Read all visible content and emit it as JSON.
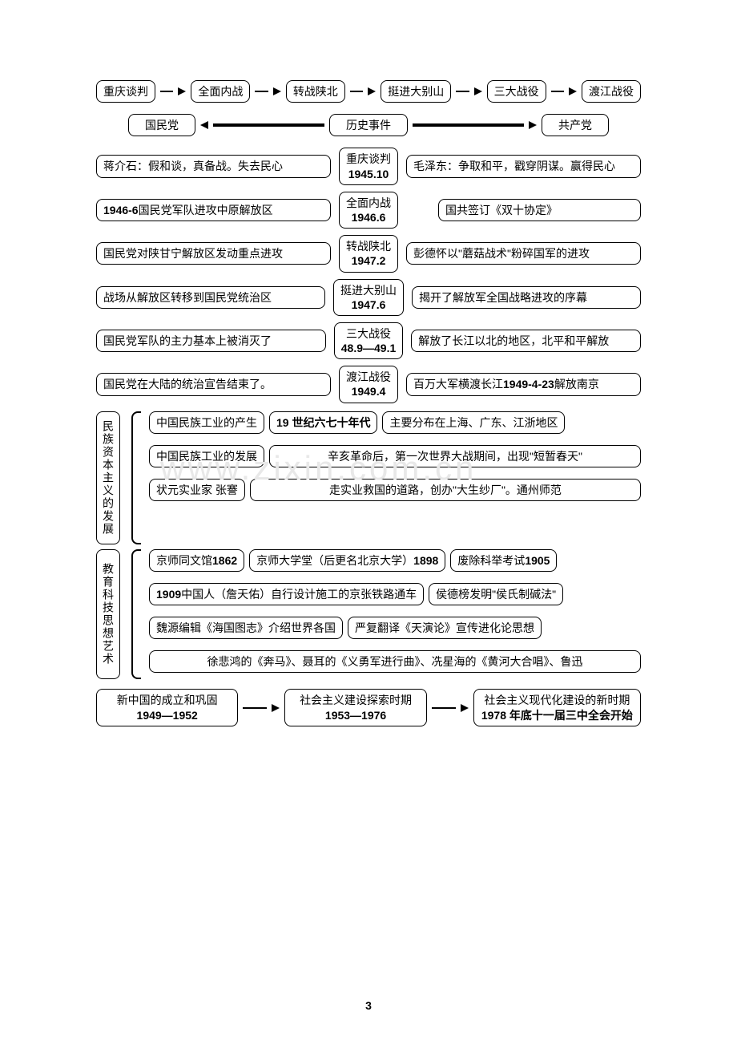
{
  "watermark": "www.zixin.com.cn",
  "page_number": "3",
  "timeline_top": [
    "重庆谈判",
    "全面内战",
    "转战陕北",
    "挺进大别山",
    "三大战役",
    "渡江战役"
  ],
  "header_row": {
    "left": "国民党",
    "center": "历史事件",
    "right": "共产党"
  },
  "events": [
    {
      "left": "蒋介石：假和谈，真备战。失去民心",
      "center": "重庆谈判",
      "date": "1945.10",
      "right": "毛泽东：争取和平，戳穿阴谋。赢得民心"
    },
    {
      "left": "1946-6 国民党军队进攻中原解放区",
      "center": "全面内战",
      "date": "1946.6",
      "right": "国共签订《双十协定》",
      "right_offset": true
    },
    {
      "left": "国民党对陕甘宁解放区发动重点进攻",
      "center": "转战陕北",
      "date": "1947.2",
      "right": "彭德怀以\"蘑菇战术\"粉碎国军的进攻"
    },
    {
      "left": "战场从解放区转移到国民党统治区",
      "center": "挺进大别山",
      "date": "1947.6",
      "right": "揭开了解放军全国战略进攻的序幕"
    },
    {
      "left": "国民党军队的主力基本上被消灭了",
      "center": "三大战役",
      "date": "48.9—49.1",
      "right": "解放了长江以北的地区，北平和平解放"
    },
    {
      "left": "国民党在大陆的统治宣告结束了。",
      "center": "渡江战役",
      "date": "1949.4",
      "right": "百万大军横渡长江 1949-4-23 解放南京"
    }
  ],
  "section1_title": "民族资本主义的发展",
  "section1": [
    {
      "a": "中国民族工业的产生",
      "b": "19 世纪六七十年代",
      "c": "主要分布在上海、广东、江浙地区"
    },
    {
      "a": "中国民族工业的发展",
      "b": "辛亥革命后，第一次世界大战期间，出现\"短暂春天\""
    },
    {
      "a": "状元实业家  张謇",
      "b": "走实业救国的道路，创办\"大生纱厂\"。通州师范"
    }
  ],
  "section2_title": "教育科技思想艺术",
  "section2": [
    [
      "京师同文馆 1862",
      "京师大学堂（后更名北京大学）1898",
      "废除科举考试 1905"
    ],
    [
      "1909 中国人（詹天佑）自行设计施工的京张铁路通车",
      "侯德榜发明\"侯氏制碱法\""
    ],
    [
      "魏源编辑《海国图志》介绍世界各国",
      "严复翻译《天演论》宣传进化论思想"
    ],
    [
      "徐悲鸿的《奔马》、聂耳的《义勇军进行曲》、冼星海的《黄河大合唱》、鲁迅"
    ]
  ],
  "periods": [
    {
      "title": "新中国的成立和巩固",
      "date": "1949—1952"
    },
    {
      "title": "社会主义建设探索时期",
      "date": "1953—1976"
    },
    {
      "title": "社会主义现代化建设的新时期",
      "date": "1978 年底十一届三中全会开始"
    }
  ],
  "colors": {
    "border": "#000000",
    "bg": "#ffffff",
    "watermark": "#e8e8e8"
  }
}
